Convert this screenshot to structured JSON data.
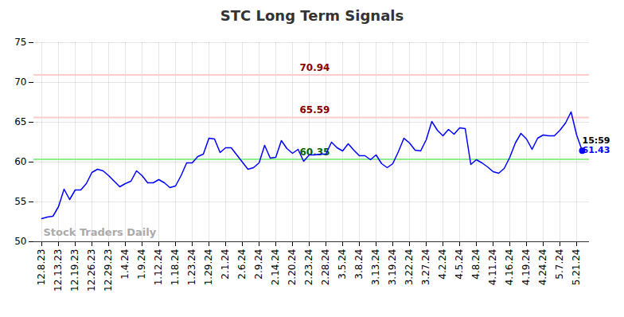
{
  "chart_data": {
    "type": "line",
    "title": "STC Long Term Signals",
    "categories": [
      "12.8.23",
      null,
      null,
      "12.13.23",
      null,
      null,
      "12.19.23",
      null,
      null,
      "12.26.23",
      null,
      null,
      "12.29.23",
      null,
      null,
      "1.4.24",
      null,
      null,
      "1.9.24",
      null,
      null,
      "1.12.24",
      null,
      null,
      "1.18.24",
      null,
      null,
      "1.23.24",
      null,
      null,
      "1.29.24",
      null,
      null,
      "2.1.24",
      null,
      null,
      "2.6.24",
      null,
      null,
      "2.9.24",
      null,
      null,
      "2.14.24",
      null,
      null,
      "2.20.24",
      null,
      null,
      "2.23.24",
      null,
      null,
      "2.28.24",
      null,
      null,
      "3.5.24",
      null,
      null,
      "3.8.24",
      null,
      null,
      "3.13.24",
      null,
      null,
      "3.19.24",
      null,
      null,
      "3.22.24",
      null,
      null,
      "3.27.24",
      null,
      null,
      "4.2.24",
      null,
      null,
      "4.5.24",
      null,
      null,
      "4.8.24",
      null,
      null,
      "4.11.24",
      null,
      null,
      "4.16.24",
      null,
      null,
      "4.19.24",
      null,
      null,
      "4.24.24",
      null,
      null,
      "5.7.24",
      null,
      null,
      "5.21.24",
      null
    ],
    "values": [
      52.9,
      53.1,
      53.2,
      54.4,
      56.6,
      55.3,
      56.5,
      56.5,
      57.3,
      58.7,
      59.1,
      58.9,
      58.3,
      57.6,
      56.9,
      57.3,
      57.6,
      58.9,
      58.3,
      57.4,
      57.4,
      57.8,
      57.4,
      56.8,
      57.0,
      58.3,
      59.9,
      59.9,
      60.7,
      61.0,
      63.0,
      62.9,
      61.2,
      61.8,
      61.8,
      60.9,
      60.0,
      59.1,
      59.3,
      59.9,
      62.1,
      60.5,
      60.6,
      62.7,
      61.7,
      61.1,
      61.6,
      60.1,
      60.9,
      60.9,
      61.0,
      61.0,
      62.5,
      61.8,
      61.4,
      62.3,
      61.5,
      60.8,
      60.8,
      60.3,
      60.9,
      59.8,
      59.3,
      59.8,
      61.3,
      63.0,
      62.4,
      61.5,
      61.4,
      62.8,
      65.1,
      64.0,
      63.3,
      64.1,
      63.5,
      64.3,
      64.2,
      59.7,
      60.3,
      59.9,
      59.4,
      58.8,
      58.6,
      59.2,
      60.6,
      62.4,
      63.6,
      62.9,
      61.6,
      63.0,
      63.4,
      63.3,
      63.3,
      64.0,
      64.9,
      66.3,
      63.4,
      61.43
    ],
    "color": "#0000ff",
    "marker": "last",
    "ylim": [
      50,
      75
    ],
    "yticks": [
      50,
      55,
      60,
      65,
      70,
      75
    ],
    "grid": true,
    "levels": [
      {
        "value": 70.94,
        "color": "red"
      },
      {
        "value": 65.59,
        "color": "red"
      },
      {
        "value": 60.35,
        "color": "green"
      }
    ],
    "last_point": {
      "time": "15:59",
      "value": 61.43
    },
    "watermark": "Stock Traders Daily"
  }
}
